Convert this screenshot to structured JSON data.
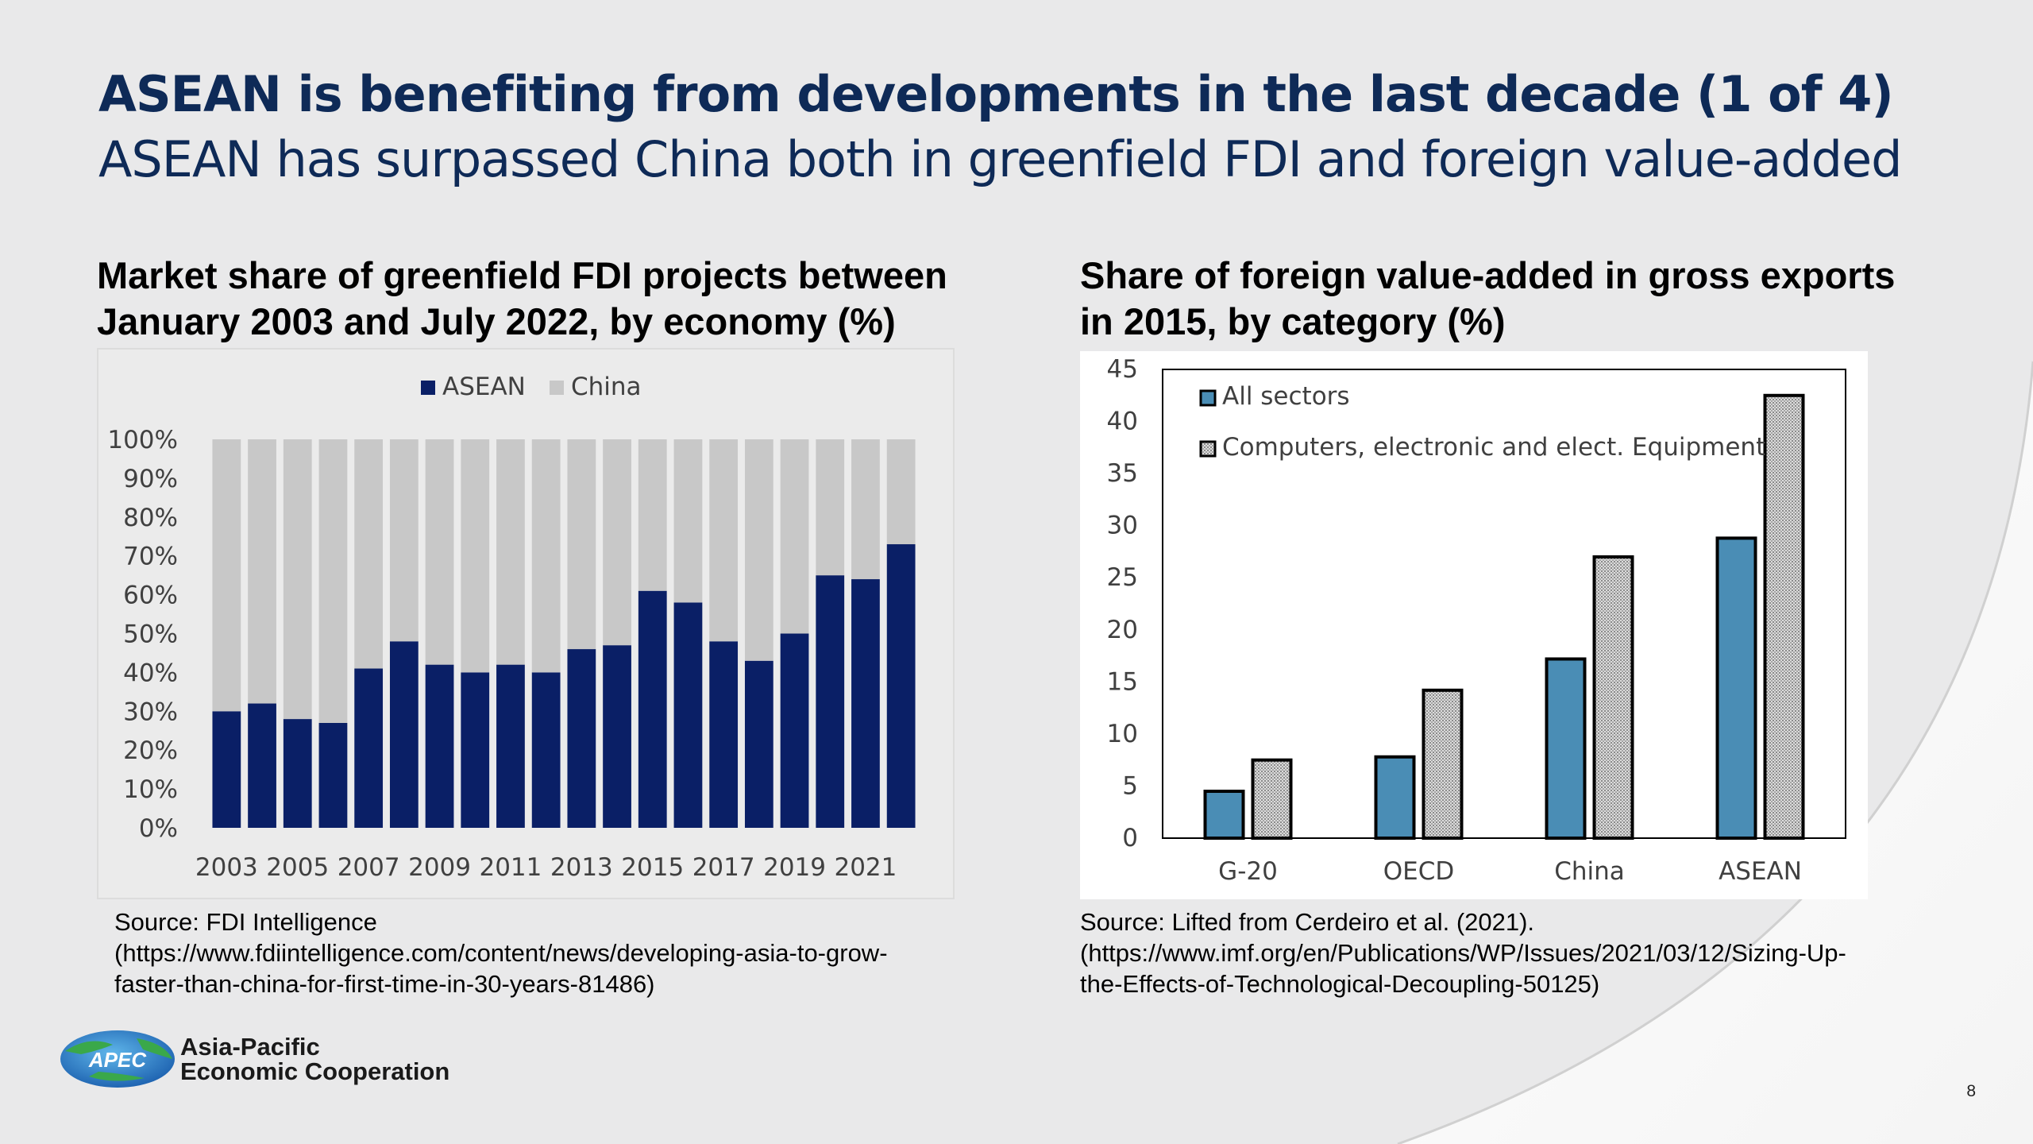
{
  "slide": {
    "title": "ASEAN is benefiting from developments in the last decade (1 of 4)",
    "subtitle": "ASEAN has surpassed China both in greenfield FDI and foreign value-added",
    "page_number": "8"
  },
  "logo": {
    "label": "APEC",
    "org_line1": "Asia-Pacific",
    "org_line2": "Economic Cooperation"
  },
  "left_chart": {
    "heading_line1": "Market share of greenfield FDI projects between",
    "heading_line2": "January 2003 and July 2022, by economy (%)",
    "source_line1": "Source: FDI Intelligence",
    "source_line2": "(https://www.fdiintelligence.com/content/news/developing-asia-to-grow-",
    "source_line3": "faster-than-china-for-first-time-in-30-years-81486)"
  },
  "right_chart": {
    "heading_line1": "Share of foreign value-added in gross exports",
    "heading_line2": "in 2015, by category (%)",
    "source_line1": "Source: Lifted from Cerdeiro et al. (2021).",
    "source_line2": "(https://www.imf.org/en/Publications/WP/Issues/2021/03/12/Sizing-Up-",
    "source_line3": "the-Effects-of-Technological-Decoupling-50125)"
  },
  "chart_data": [
    {
      "type": "bar",
      "stacked": true,
      "percent_stacked": true,
      "categories": [
        "2003",
        "2004",
        "2005",
        "2006",
        "2007",
        "2008",
        "2009",
        "2010",
        "2011",
        "2012",
        "2013",
        "2014",
        "2015",
        "2016",
        "2017",
        "2018",
        "2019",
        "2020",
        "2021",
        "2022"
      ],
      "x_tick_labels": [
        "2003",
        "2005",
        "2007",
        "2009",
        "2011",
        "2013",
        "2015",
        "2017",
        "2019",
        "2021"
      ],
      "series": [
        {
          "name": "ASEAN",
          "color": "#0a1f66",
          "values": [
            30,
            32,
            28,
            27,
            41,
            48,
            42,
            40,
            42,
            40,
            46,
            47,
            61,
            58,
            48,
            43,
            50,
            65,
            64,
            73
          ]
        },
        {
          "name": "China",
          "color": "#c8c8c8",
          "values": [
            70,
            68,
            72,
            73,
            59,
            52,
            58,
            60,
            58,
            60,
            54,
            53,
            39,
            42,
            52,
            57,
            50,
            35,
            36,
            27
          ]
        }
      ],
      "y_tick_labels": [
        "0%",
        "10%",
        "20%",
        "30%",
        "40%",
        "50%",
        "60%",
        "70%",
        "80%",
        "90%",
        "100%"
      ],
      "ylim": [
        0,
        100
      ],
      "legend_position": "top-center",
      "grid": false
    },
    {
      "type": "bar",
      "categories": [
        "G-20",
        "OECD",
        "China",
        "ASEAN"
      ],
      "series": [
        {
          "name": "All sectors",
          "color": "#4a8db5",
          "values": [
            4.5,
            7.8,
            17.2,
            28.8
          ]
        },
        {
          "name": "Computers, electronic and elect. Equipment",
          "color": "#d4d4d4",
          "pattern": "dotted",
          "values": [
            7.5,
            14.2,
            27.0,
            42.5
          ]
        }
      ],
      "y_tick_labels": [
        "0",
        "5",
        "10",
        "15",
        "20",
        "25",
        "30",
        "35",
        "40",
        "45"
      ],
      "ylim": [
        0,
        45
      ],
      "legend_position": "top-left",
      "grid": false
    }
  ]
}
